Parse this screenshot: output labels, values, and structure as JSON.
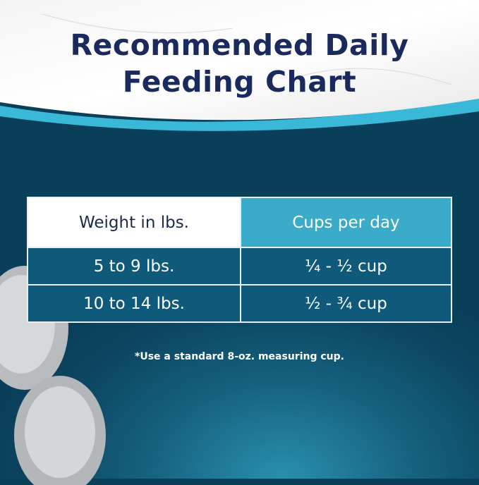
{
  "title_lines": [
    "Recommended Daily",
    "Feeding Chart"
  ],
  "table": {
    "headers": [
      "Weight in lbs.",
      "Cups per day"
    ],
    "rows": [
      [
        "5 to 9 lbs.",
        "¼ - ½ cup"
      ],
      [
        "10 to 14 lbs.",
        "½ - ¾ cup"
      ]
    ]
  },
  "footnote": "*Use a standard 8-oz. measuring cup.",
  "colors": {
    "title": "#1b2a5c",
    "header_accent": "#3aacc9",
    "row_bg": "#0f5a7a",
    "background": "#0c4662"
  }
}
